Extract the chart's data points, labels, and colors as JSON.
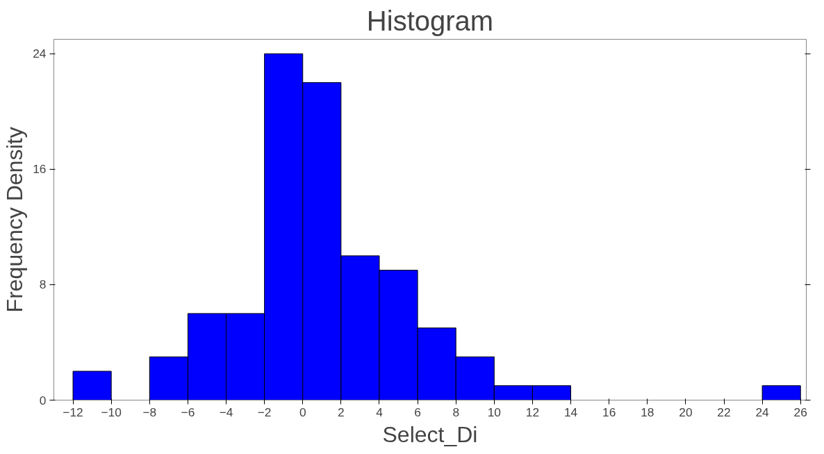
{
  "chart_data": {
    "type": "histogram",
    "title": "Histogram",
    "xlabel": "Select_Di",
    "ylabel": "Frequency Density",
    "bins": [
      -12,
      -10,
      -8,
      -6,
      -4,
      -2,
      0,
      2,
      4,
      6,
      8,
      10,
      12,
      14,
      16,
      18,
      20,
      22,
      24,
      26
    ],
    "values": [
      2,
      0,
      3,
      6,
      6,
      24,
      22,
      10,
      9,
      5,
      3,
      1,
      1,
      0,
      0,
      0,
      0,
      0,
      1
    ],
    "color": "#0000ff",
    "xlim": [
      -13,
      26.3
    ],
    "ylim": [
      0,
      25
    ],
    "xticks": [
      -12,
      -10,
      -8,
      -6,
      -4,
      -2,
      0,
      2,
      4,
      6,
      8,
      10,
      12,
      14,
      16,
      18,
      20,
      22,
      24,
      26
    ],
    "yticks": [
      0,
      8,
      16,
      24
    ],
    "grid": false
  }
}
